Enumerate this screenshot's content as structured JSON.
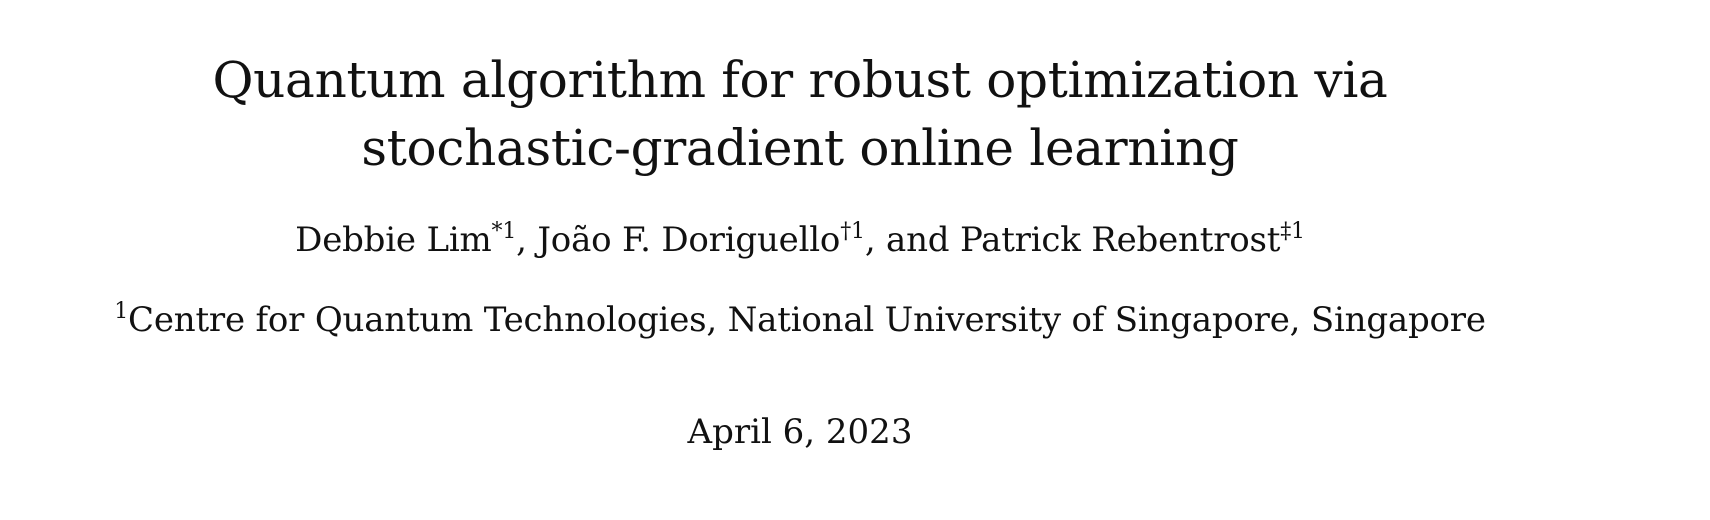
{
  "title": {
    "line1": "Quantum algorithm for robust optimization via",
    "line2": "stochastic-gradient online learning"
  },
  "authors": [
    {
      "name": "Debbie Lim",
      "marks": "*1"
    },
    {
      "name": "João F. Doriguello",
      "marks": "†1"
    },
    {
      "name": "Patrick Rebentrost",
      "marks": "‡1"
    }
  ],
  "separators": {
    "comma": ", ",
    "and": ", and "
  },
  "affiliation": {
    "mark": "1",
    "text": "Centre for Quantum Technologies, National University of Singapore, Singapore"
  },
  "date": "April 6, 2023"
}
